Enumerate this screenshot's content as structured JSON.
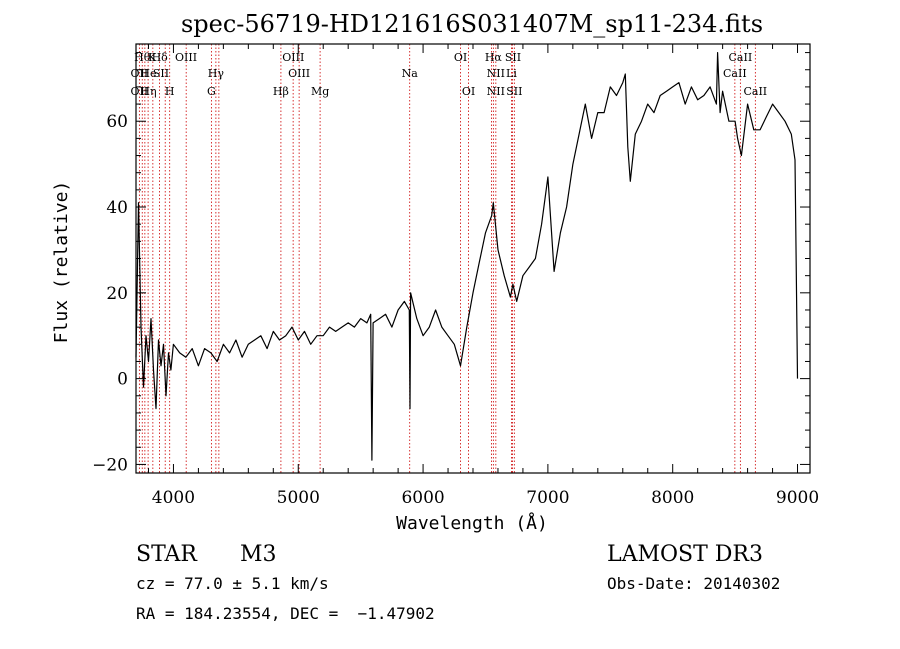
{
  "chart_data": {
    "type": "line",
    "title": "spec-56719-HD121616S031407M_sp11-234.fits",
    "xlabel": "Wavelength (Å)",
    "ylabel": "Flux (relative)",
    "xlim": [
      3700,
      9100
    ],
    "ylim": [
      -22,
      78
    ],
    "x_ticks": [
      4000,
      5000,
      6000,
      7000,
      8000,
      9000
    ],
    "y_ticks": [
      -20,
      0,
      20,
      40,
      60
    ],
    "x_tick_labels": [
      "4000",
      "5000",
      "6000",
      "7000",
      "8000",
      "9000"
    ],
    "y_tick_labels": [
      "−20",
      "0",
      "20",
      "40",
      "60"
    ],
    "grid": false,
    "series": [
      {
        "x": [
          3700,
          3720,
          3740,
          3760,
          3780,
          3800,
          3820,
          3840,
          3860,
          3880,
          3900,
          3920,
          3940,
          3960,
          3980,
          4000,
          4050,
          4100,
          4150,
          4200,
          4250,
          4300,
          4350,
          4400,
          4450,
          4500,
          4550,
          4600,
          4650,
          4700,
          4750,
          4800,
          4850,
          4900,
          4950,
          5000,
          5050,
          5100,
          5150,
          5200,
          5250,
          5300,
          5350,
          5400,
          5450,
          5500,
          5550,
          5580,
          5590,
          5600,
          5650,
          5700,
          5750,
          5800,
          5850,
          5890,
          5895,
          5900,
          5950,
          6000,
          6050,
          6100,
          6150,
          6200,
          6250,
          6300,
          6350,
          6400,
          6450,
          6500,
          6550,
          6563,
          6600,
          6650,
          6700,
          6720,
          6750,
          6800,
          6850,
          6900,
          6950,
          7000,
          7050,
          7100,
          7150,
          7200,
          7250,
          7300,
          7350,
          7400,
          7450,
          7500,
          7550,
          7600,
          7620,
          7640,
          7660,
          7700,
          7750,
          7800,
          7850,
          7900,
          7950,
          8000,
          8050,
          8100,
          8150,
          8200,
          8250,
          8300,
          8350,
          8360,
          8380,
          8400,
          8450,
          8500,
          8520,
          8550,
          8600,
          8650,
          8700,
          8750,
          8800,
          8850,
          8900,
          8950,
          8980,
          9000
        ],
        "y": [
          5,
          41,
          12,
          -2,
          10,
          4,
          14,
          2,
          -7,
          9,
          3,
          8,
          -4,
          6,
          2,
          8,
          6,
          5,
          7,
          3,
          7,
          6,
          4,
          8,
          6,
          9,
          5,
          8,
          9,
          10,
          7,
          11,
          9,
          10,
          12,
          9,
          11,
          8,
          10,
          10,
          12,
          11,
          12,
          13,
          12,
          14,
          13,
          15,
          -19,
          13,
          14,
          15,
          12,
          16,
          18,
          16,
          -7,
          20,
          14,
          10,
          12,
          16,
          12,
          10,
          8,
          3,
          12,
          20,
          27,
          34,
          38,
          41,
          30,
          24,
          19,
          22,
          18,
          24,
          26,
          28,
          36,
          47,
          25,
          34,
          40,
          50,
          57,
          64,
          56,
          62,
          62,
          68,
          66,
          69,
          71,
          54,
          46,
          57,
          60,
          64,
          62,
          66,
          67,
          68,
          69,
          64,
          68,
          65,
          66,
          68,
          64,
          76,
          62,
          67,
          60,
          60,
          56,
          52,
          64,
          58,
          58,
          61,
          64,
          62,
          60,
          57,
          51,
          0
        ]
      }
    ],
    "line_labels": [
      {
        "x": 3750,
        "row": 1,
        "text": "Hθ"
      },
      {
        "x": 3830,
        "row": 1,
        "text": "K"
      },
      {
        "x": 3890,
        "row": 1,
        "text": "Hδ"
      },
      {
        "x": 4101,
        "row": 1,
        "text": "OIII"
      },
      {
        "x": 4340,
        "row": 2,
        "text": "Hγ"
      },
      {
        "x": 4960,
        "row": 1,
        "text": "OIII"
      },
      {
        "x": 6300,
        "row": 1,
        "text": "OI"
      },
      {
        "x": 6563,
        "row": 1,
        "text": "Hα"
      },
      {
        "x": 6720,
        "row": 1,
        "text": "SII"
      },
      {
        "x": 8542,
        "row": 1,
        "text": "CaII"
      },
      {
        "x": 3727,
        "row": 2,
        "text": "OII"
      },
      {
        "x": 3800,
        "row": 2,
        "text": "He"
      },
      {
        "x": 3900,
        "row": 2,
        "text": "SII"
      },
      {
        "x": 5007,
        "row": 2,
        "text": "OIII"
      },
      {
        "x": 5893,
        "row": 2,
        "text": "Na"
      },
      {
        "x": 6583,
        "row": 2,
        "text": "NII"
      },
      {
        "x": 6708,
        "row": 2,
        "text": "Li"
      },
      {
        "x": 8498,
        "row": 2,
        "text": "CaII"
      },
      {
        "x": 3727,
        "row": 3,
        "text": "OII"
      },
      {
        "x": 3800,
        "row": 3,
        "text": "Hη"
      },
      {
        "x": 3970,
        "row": 3,
        "text": "H"
      },
      {
        "x": 4304,
        "row": 3,
        "text": "G"
      },
      {
        "x": 4861,
        "row": 3,
        "text": "Hβ"
      },
      {
        "x": 5175,
        "row": 3,
        "text": "Mg"
      },
      {
        "x": 6364,
        "row": 3,
        "text": "OI"
      },
      {
        "x": 6583,
        "row": 3,
        "text": "NII"
      },
      {
        "x": 6731,
        "row": 3,
        "text": "SII"
      },
      {
        "x": 8662,
        "row": 3,
        "text": "CaII"
      }
    ],
    "line_markers": [
      3727,
      3750,
      3771,
      3797,
      3835,
      3889,
      3934,
      3970,
      4102,
      4304,
      4340,
      4364,
      4861,
      4959,
      5007,
      5175,
      5893,
      6300,
      6364,
      6548,
      6563,
      6583,
      6708,
      6717,
      6731,
      8498,
      8542,
      8662
    ]
  },
  "info": {
    "object_class": "STAR",
    "subclass": "M3",
    "survey": "LAMOST DR3",
    "redshift": "cz = 77.0 ± 5.1 km/s",
    "obs_date": "Obs-Date: 20140302",
    "coords": "RA = 184.23554, DEC =  −1.47902"
  },
  "colors": {
    "spectrum": "#000000",
    "markers": "#cc0000",
    "axes": "#000000"
  }
}
